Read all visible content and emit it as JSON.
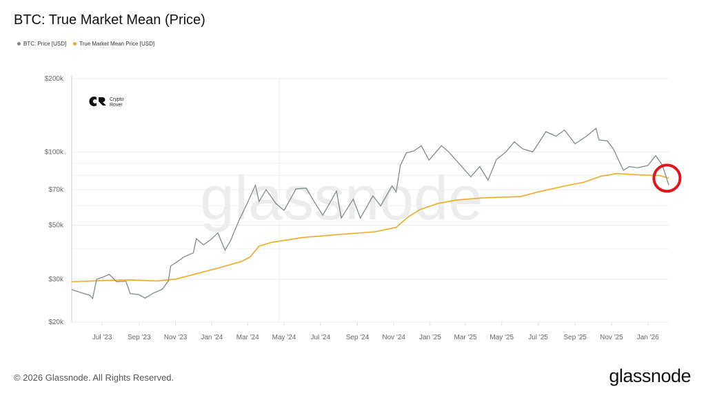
{
  "title": "BTC: True Market Mean (Price)",
  "footer": {
    "copyright": "© 2026 Glassnode. All Rights Reserved.",
    "brand": "glassnode",
    "watermark": "glassnode"
  },
  "logo": {
    "line1": "Crypto",
    "line2": "Rover"
  },
  "colors": {
    "price": "#7d8a8d",
    "mean": "#f0a81e",
    "annotation": "#e0141b"
  },
  "chart_data": {
    "type": "line",
    "title": "BTC: True Market Mean (Price)",
    "yscale": "log",
    "ylim": [
      20000,
      200000
    ],
    "xlim": [
      "2023-05-11",
      "2026-02-05"
    ],
    "grid": true,
    "legend_placement": "top-left",
    "y_ticks": [
      {
        "v": 20000,
        "label": "$20k"
      },
      {
        "v": 30000,
        "label": "$30k"
      },
      {
        "v": 50000,
        "label": "$50k"
      },
      {
        "v": 70000,
        "label": "$70k"
      },
      {
        "v": 100000,
        "label": "$100k"
      },
      {
        "v": 200000,
        "label": "$200k"
      }
    ],
    "y_minor_grid": [
      40000,
      60000,
      80000,
      90000
    ],
    "x_ticks": [
      {
        "d": "2023-07-01",
        "label": "Jul '23"
      },
      {
        "d": "2023-09-01",
        "label": "Sep '23"
      },
      {
        "d": "2023-11-01",
        "label": "Nov '23"
      },
      {
        "d": "2024-01-01",
        "label": "Jan '24"
      },
      {
        "d": "2024-03-01",
        "label": "Mar '24"
      },
      {
        "d": "2024-05-01",
        "label": "May '24"
      },
      {
        "d": "2024-07-01",
        "label": "Jul '24"
      },
      {
        "d": "2024-09-01",
        "label": "Sep '24"
      },
      {
        "d": "2024-11-01",
        "label": "Nov '24"
      },
      {
        "d": "2025-01-01",
        "label": "Jan '25"
      },
      {
        "d": "2025-03-01",
        "label": "Mar '25"
      },
      {
        "d": "2025-05-01",
        "label": "May '25"
      },
      {
        "d": "2025-07-01",
        "label": "Jul '25"
      },
      {
        "d": "2025-09-01",
        "label": "Sep '25"
      },
      {
        "d": "2025-11-01",
        "label": "Nov '25"
      },
      {
        "d": "2026-01-01",
        "label": "Jan '26"
      }
    ],
    "series": [
      {
        "name": "BTC: Price [USD]",
        "points": [
          [
            "2023-05-11",
            27200
          ],
          [
            "2023-05-25",
            26500
          ],
          [
            "2023-06-10",
            25800
          ],
          [
            "2023-06-15",
            25000
          ],
          [
            "2023-06-22",
            30000
          ],
          [
            "2023-07-01",
            30500
          ],
          [
            "2023-07-13",
            31400
          ],
          [
            "2023-07-25",
            29300
          ],
          [
            "2023-08-10",
            29400
          ],
          [
            "2023-08-17",
            26200
          ],
          [
            "2023-09-01",
            25900
          ],
          [
            "2023-09-11",
            25100
          ],
          [
            "2023-09-25",
            26300
          ],
          [
            "2023-10-10",
            27300
          ],
          [
            "2023-10-20",
            29500
          ],
          [
            "2023-10-24",
            34000
          ],
          [
            "2023-11-01",
            35000
          ],
          [
            "2023-11-15",
            37000
          ],
          [
            "2023-12-01",
            38500
          ],
          [
            "2023-12-06",
            44000
          ],
          [
            "2023-12-18",
            41500
          ],
          [
            "2024-01-01",
            44000
          ],
          [
            "2024-01-11",
            46500
          ],
          [
            "2024-01-23",
            39500
          ],
          [
            "2024-02-01",
            43000
          ],
          [
            "2024-02-15",
            52000
          ],
          [
            "2024-03-01",
            62000
          ],
          [
            "2024-03-14",
            73000
          ],
          [
            "2024-03-20",
            62500
          ],
          [
            "2024-04-01",
            70000
          ],
          [
            "2024-04-17",
            61500
          ],
          [
            "2024-05-01",
            57500
          ],
          [
            "2024-05-21",
            70500
          ],
          [
            "2024-06-07",
            71000
          ],
          [
            "2024-06-24",
            60500
          ],
          [
            "2024-07-05",
            55000
          ],
          [
            "2024-07-28",
            69000
          ],
          [
            "2024-08-05",
            53500
          ],
          [
            "2024-08-25",
            64000
          ],
          [
            "2024-09-06",
            53500
          ],
          [
            "2024-09-27",
            66000
          ],
          [
            "2024-10-10",
            60000
          ],
          [
            "2024-10-29",
            72500
          ],
          [
            "2024-11-05",
            68500
          ],
          [
            "2024-11-12",
            88000
          ],
          [
            "2024-11-22",
            99000
          ],
          [
            "2024-12-05",
            101000
          ],
          [
            "2024-12-17",
            106000
          ],
          [
            "2024-12-30",
            92500
          ],
          [
            "2025-01-20",
            106000
          ],
          [
            "2025-02-01",
            100000
          ],
          [
            "2025-02-25",
            86000
          ],
          [
            "2025-03-10",
            79000
          ],
          [
            "2025-03-25",
            87000
          ],
          [
            "2025-04-08",
            76500
          ],
          [
            "2025-04-22",
            93000
          ],
          [
            "2025-05-08",
            100000
          ],
          [
            "2025-05-22",
            110000
          ],
          [
            "2025-06-05",
            103000
          ],
          [
            "2025-06-22",
            100000
          ],
          [
            "2025-07-14",
            121000
          ],
          [
            "2025-07-31",
            116000
          ],
          [
            "2025-08-14",
            123000
          ],
          [
            "2025-09-01",
            108000
          ],
          [
            "2025-09-20",
            116000
          ],
          [
            "2025-10-06",
            125000
          ],
          [
            "2025-10-11",
            112000
          ],
          [
            "2025-10-25",
            111000
          ],
          [
            "2025-11-04",
            103000
          ],
          [
            "2025-11-21",
            84000
          ],
          [
            "2025-12-01",
            87000
          ],
          [
            "2025-12-15",
            86000
          ],
          [
            "2026-01-01",
            88000
          ],
          [
            "2026-01-14",
            96500
          ],
          [
            "2026-01-25",
            88500
          ],
          [
            "2026-02-05",
            73000
          ]
        ]
      },
      {
        "name": "True Market Mean Price [USD]",
        "points": [
          [
            "2023-05-11",
            29300
          ],
          [
            "2023-07-01",
            29600
          ],
          [
            "2023-08-15",
            29800
          ],
          [
            "2023-10-01",
            29500
          ],
          [
            "2023-11-01",
            30000
          ],
          [
            "2023-12-15",
            32000
          ],
          [
            "2024-01-15",
            33500
          ],
          [
            "2024-02-20",
            35500
          ],
          [
            "2024-03-05",
            37000
          ],
          [
            "2024-03-20",
            41000
          ],
          [
            "2024-04-10",
            42500
          ],
          [
            "2024-06-01",
            44500
          ],
          [
            "2024-08-01",
            45800
          ],
          [
            "2024-10-01",
            47000
          ],
          [
            "2024-11-05",
            49000
          ],
          [
            "2024-11-25",
            54000
          ],
          [
            "2024-12-15",
            58000
          ],
          [
            "2025-01-15",
            61500
          ],
          [
            "2025-02-15",
            63500
          ],
          [
            "2025-04-01",
            64800
          ],
          [
            "2025-06-01",
            65500
          ],
          [
            "2025-07-01",
            68500
          ],
          [
            "2025-08-15",
            72500
          ],
          [
            "2025-09-15",
            75000
          ],
          [
            "2025-10-15",
            79500
          ],
          [
            "2025-11-10",
            81500
          ],
          [
            "2025-12-15",
            80500
          ],
          [
            "2026-01-20",
            80000
          ],
          [
            "2026-02-05",
            78000
          ]
        ]
      }
    ],
    "annotation": {
      "type": "circle",
      "at": "2026-02-02",
      "value": 78000
    }
  }
}
